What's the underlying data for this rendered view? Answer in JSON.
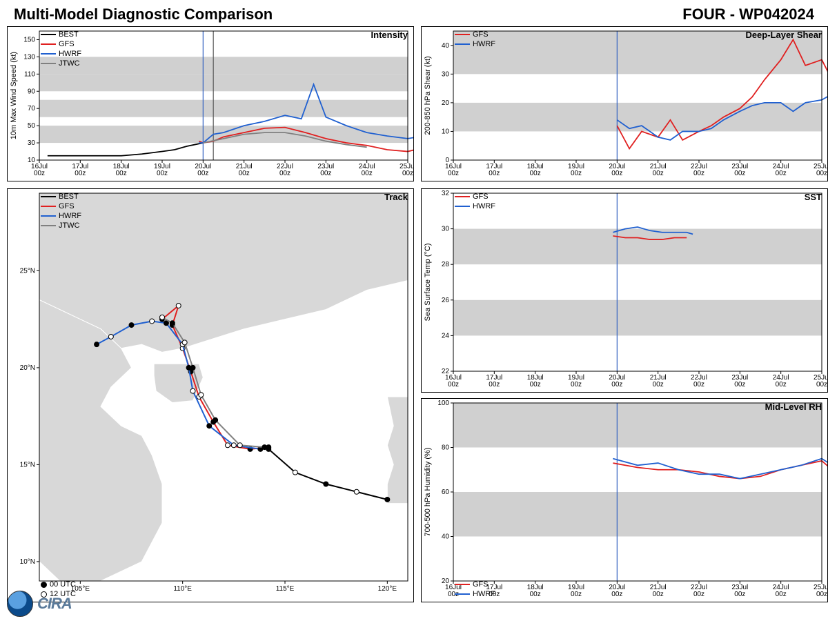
{
  "header": {
    "title": "Multi-Model Diagnostic Comparison",
    "storm_id": "FOUR - WP042024"
  },
  "time_axis": {
    "labels": [
      "16Jul\n00z",
      "17Jul\n00z",
      "18Jul\n00z",
      "19Jul\n00z",
      "20Jul\n00z",
      "21Jul\n00z",
      "22Jul\n00z",
      "23Jul\n00z",
      "24Jul\n00z",
      "25Jul\n00z"
    ],
    "now_index": 4.0,
    "tick_fontsize": 10
  },
  "colors": {
    "BEST": "#000000",
    "GFS": "#e02020",
    "HWRF": "#2060d0",
    "JTWC": "#808080",
    "band": "#d0d0d0",
    "grid": "#e0e0e0",
    "vline": "#3060c0",
    "land": "#d8d8d8",
    "land_border": "#ffffff",
    "sea": "#ffffff"
  },
  "intensity": {
    "title": "Intensity",
    "ylabel": "10m Max Wind Speed (kt)",
    "ylim": [
      10,
      160
    ],
    "ytick_step": 20,
    "bands": [
      [
        30,
        50
      ],
      [
        60,
        80
      ],
      [
        90,
        110
      ],
      [
        110,
        130
      ]
    ],
    "legend": [
      "BEST",
      "GFS",
      "HWRF",
      "JTWC"
    ],
    "vlines": [
      4.0,
      4.25
    ],
    "series": {
      "BEST": {
        "x": [
          0.2,
          1,
          2,
          2.5,
          3,
          3.3,
          3.6,
          4
        ],
        "y": [
          15,
          15,
          15,
          17,
          20,
          22,
          26,
          30
        ]
      },
      "GFS": {
        "x": [
          3.9,
          4,
          4.25,
          4.5,
          5,
          5.5,
          6,
          6.5,
          7,
          7.5,
          8,
          8.5,
          9,
          9.25
        ],
        "y": [
          32,
          30,
          32,
          37,
          42,
          47,
          48,
          42,
          35,
          30,
          27,
          22,
          20,
          23
        ]
      },
      "HWRF": {
        "x": [
          3.9,
          4,
          4.25,
          4.5,
          5,
          5.5,
          6,
          6.4,
          6.7,
          7,
          7.5,
          8,
          8.5,
          9,
          9.25
        ],
        "y": [
          30,
          30,
          40,
          42,
          50,
          55,
          62,
          58,
          98,
          60,
          50,
          42,
          38,
          35,
          37
        ]
      },
      "JTWC": {
        "x": [
          4,
          4.5,
          5,
          5.5,
          6,
          6.5,
          7,
          7.5,
          8
        ],
        "y": [
          30,
          35,
          40,
          42,
          42,
          38,
          32,
          28,
          25
        ]
      }
    },
    "line_width": 1.8
  },
  "shear": {
    "title": "Deep-Layer Shear",
    "ylabel": "200-850 hPa Shear (kt)",
    "ylim": [
      0,
      45
    ],
    "yticks": [
      0,
      10,
      20,
      30,
      40
    ],
    "bands": [
      [
        10,
        20
      ],
      [
        30,
        45
      ]
    ],
    "legend": [
      "GFS",
      "HWRF"
    ],
    "vlines": [
      4.0
    ],
    "series": {
      "GFS": {
        "x": [
          4,
          4.3,
          4.6,
          5,
          5.3,
          5.6,
          6,
          6.3,
          6.6,
          7,
          7.3,
          7.6,
          8,
          8.3,
          8.6,
          9,
          9.25
        ],
        "y": [
          12,
          4,
          10,
          8,
          14,
          7,
          10,
          12,
          15,
          18,
          22,
          28,
          35,
          42,
          33,
          35,
          28
        ]
      },
      "HWRF": {
        "x": [
          4,
          4.3,
          4.6,
          5,
          5.3,
          5.6,
          6,
          6.3,
          6.6,
          7,
          7.3,
          7.6,
          8,
          8.3,
          8.6,
          9,
          9.25
        ],
        "y": [
          14,
          11,
          12,
          8,
          7,
          10,
          10,
          11,
          14,
          17,
          19,
          20,
          20,
          17,
          20,
          21,
          23
        ]
      }
    },
    "line_width": 1.8
  },
  "sst": {
    "title": "SST",
    "ylabel": "Sea Surface Temp (°C)",
    "ylim": [
      22,
      32
    ],
    "ytick_step": 2,
    "bands": [
      [
        24,
        26
      ],
      [
        28,
        30
      ]
    ],
    "legend": [
      "GFS",
      "HWRF"
    ],
    "vlines": [
      4.0
    ],
    "series": {
      "GFS": {
        "x": [
          3.9,
          4.2,
          4.5,
          4.8,
          5.1,
          5.4,
          5.7
        ],
        "y": [
          29.6,
          29.5,
          29.5,
          29.4,
          29.4,
          29.5,
          29.5
        ]
      },
      "HWRF": {
        "x": [
          3.9,
          4.2,
          4.5,
          4.8,
          5.1,
          5.4,
          5.7,
          5.85
        ],
        "y": [
          29.8,
          30.0,
          30.1,
          29.9,
          29.8,
          29.8,
          29.8,
          29.7
        ]
      }
    },
    "line_width": 1.8
  },
  "rh": {
    "title": "Mid-Level RH",
    "ylabel": "700-500 hPa Humidity (%)",
    "ylim": [
      20,
      100
    ],
    "ytick_step": 20,
    "bands": [
      [
        40,
        60
      ],
      [
        80,
        100
      ]
    ],
    "legend": [
      "GFS",
      "HWRF"
    ],
    "legend_pos": "bl",
    "vlines": [
      4.0
    ],
    "series": {
      "GFS": {
        "x": [
          3.9,
          4.5,
          5,
          5.5,
          6,
          6.5,
          7,
          7.5,
          8,
          8.5,
          9,
          9.25
        ],
        "y": [
          73,
          71,
          70,
          70,
          69,
          67,
          66,
          67,
          70,
          72,
          74,
          70
        ]
      },
      "HWRF": {
        "x": [
          3.9,
          4.5,
          5,
          5.5,
          6,
          6.5,
          7,
          7.5,
          8,
          8.5,
          9,
          9.25
        ],
        "y": [
          75,
          72,
          73,
          70,
          68,
          68,
          66,
          68,
          70,
          72,
          75,
          72
        ]
      }
    },
    "line_width": 1.8
  },
  "track": {
    "title": "Track",
    "xlabel_suffix": "°E",
    "ylabel_suffix": "°N",
    "xlim": [
      103,
      121
    ],
    "xtick_step": 5,
    "xtick_start": 105,
    "ylim": [
      9,
      29
    ],
    "ytick_step": 5,
    "ytick_start": 10,
    "legend": [
      "BEST",
      "GFS",
      "HWRF",
      "JTWC"
    ],
    "marker_legend": [
      {
        "fill": "#000000",
        "label": "00 UTC"
      },
      {
        "fill": "#ffffff",
        "label": "12 UTC"
      }
    ],
    "series": {
      "BEST": [
        {
          "lon": 120.0,
          "lat": 13.2,
          "utc": 0
        },
        {
          "lon": 118.5,
          "lat": 13.6,
          "utc": 12
        },
        {
          "lon": 117.0,
          "lat": 14.0,
          "utc": 0
        },
        {
          "lon": 115.5,
          "lat": 14.6,
          "utc": 12
        },
        {
          "lon": 114.2,
          "lat": 15.8,
          "utc": 0
        }
      ],
      "GFS": [
        {
          "lon": 114.2,
          "lat": 15.9,
          "utc": 0
        },
        {
          "lon": 113.3,
          "lat": 15.8,
          "utc": 0
        },
        {
          "lon": 112.2,
          "lat": 16.0,
          "utc": 12
        },
        {
          "lon": 111.5,
          "lat": 17.2,
          "utc": 0
        },
        {
          "lon": 110.8,
          "lat": 18.5,
          "utc": 12
        },
        {
          "lon": 110.4,
          "lat": 19.8,
          "utc": 0
        },
        {
          "lon": 110.0,
          "lat": 21.0,
          "utc": 12
        },
        {
          "lon": 109.5,
          "lat": 22.2,
          "utc": 0
        },
        {
          "lon": 109.8,
          "lat": 23.2,
          "utc": 12
        },
        {
          "lon": 109.0,
          "lat": 22.5,
          "utc": 0
        }
      ],
      "HWRF": [
        {
          "lon": 113.8,
          "lat": 15.8,
          "utc": 0
        },
        {
          "lon": 112.5,
          "lat": 16.0,
          "utc": 12
        },
        {
          "lon": 111.3,
          "lat": 17.0,
          "utc": 0
        },
        {
          "lon": 110.5,
          "lat": 18.8,
          "utc": 12
        },
        {
          "lon": 110.3,
          "lat": 20.0,
          "utc": 0
        },
        {
          "lon": 110.0,
          "lat": 21.2,
          "utc": 12
        },
        {
          "lon": 109.2,
          "lat": 22.3,
          "utc": 0
        },
        {
          "lon": 108.5,
          "lat": 22.4,
          "utc": 12
        },
        {
          "lon": 107.5,
          "lat": 22.2,
          "utc": 0
        },
        {
          "lon": 106.5,
          "lat": 21.6,
          "utc": 12
        },
        {
          "lon": 105.8,
          "lat": 21.2,
          "utc": 0
        }
      ],
      "JTWC": [
        {
          "lon": 114.0,
          "lat": 15.9,
          "utc": 0
        },
        {
          "lon": 112.8,
          "lat": 16.0,
          "utc": 12
        },
        {
          "lon": 111.6,
          "lat": 17.3,
          "utc": 0
        },
        {
          "lon": 110.9,
          "lat": 18.6,
          "utc": 12
        },
        {
          "lon": 110.5,
          "lat": 20.0,
          "utc": 0
        },
        {
          "lon": 110.1,
          "lat": 21.3,
          "utc": 12
        },
        {
          "lon": 109.5,
          "lat": 22.3,
          "utc": 0
        },
        {
          "lon": 109.0,
          "lat": 22.6,
          "utc": 12
        }
      ]
    },
    "line_width": 2.0,
    "marker_radius": 3.5
  }
}
